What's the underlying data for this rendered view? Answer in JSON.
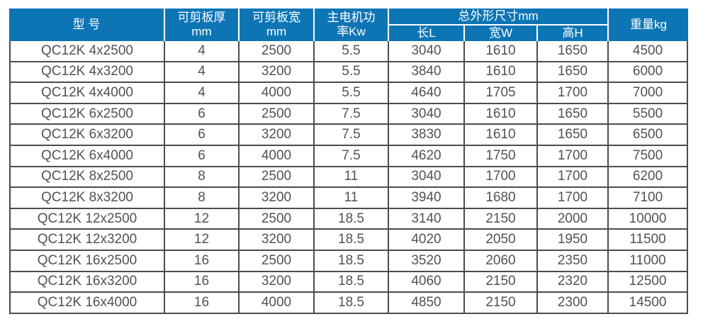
{
  "table": {
    "header": {
      "model": "型 号",
      "thickness_line1": "可剪板厚",
      "thickness_line2": "mm",
      "width_line1": "可剪板宽",
      "width_line2": "mm",
      "power_line1": "主电机功",
      "power_line2": "率Kw",
      "dimensions": "总外形尺寸mm",
      "length": "长L",
      "width_w": "宽W",
      "height_h": "高H",
      "weight": "重量kg"
    },
    "column_keys": [
      "model",
      "thickness",
      "width",
      "power",
      "length",
      "width-w",
      "height",
      "weight"
    ],
    "rows": [
      [
        "QC12K 4x2500",
        "4",
        "2500",
        "5.5",
        "3040",
        "1610",
        "1650",
        "4500"
      ],
      [
        "QC12K 4x3200",
        "4",
        "3200",
        "5.5",
        "3840",
        "1610",
        "1650",
        "6000"
      ],
      [
        "QC12K 4x4000",
        "4",
        "4000",
        "5.5",
        "4640",
        "1705",
        "1700",
        "7000"
      ],
      [
        "QC12K 6x2500",
        "6",
        "2500",
        "7.5",
        "3040",
        "1610",
        "1650",
        "5500"
      ],
      [
        "QC12K 6x3200",
        "6",
        "3200",
        "7.5",
        "3830",
        "1610",
        "1650",
        "6500"
      ],
      [
        "QC12K 6x4000",
        "6",
        "4000",
        "7.5",
        "4620",
        "1750",
        "1700",
        "7500"
      ],
      [
        "QC12K 8x2500",
        "8",
        "2500",
        "11",
        "3040",
        "1700",
        "1700",
        "6200"
      ],
      [
        "QC12K 8x3200",
        "8",
        "3200",
        "11",
        "3940",
        "1680",
        "1700",
        "7100"
      ],
      [
        "QC12K 12x2500",
        "12",
        "2500",
        "18.5",
        "3140",
        "2150",
        "2000",
        "10000"
      ],
      [
        "QC12K 12x3200",
        "12",
        "3200",
        "18.5",
        "4020",
        "2050",
        "1950",
        "11500"
      ],
      [
        "QC12K 16x2500",
        "16",
        "2500",
        "18.5",
        "3520",
        "2060",
        "2350",
        "11000"
      ],
      [
        "QC12K 16x3200",
        "16",
        "3200",
        "18.5",
        "4060",
        "2150",
        "2320",
        "12500"
      ],
      [
        "QC12K 16x4000",
        "16",
        "4000",
        "18.5",
        "4850",
        "2150",
        "2300",
        "14500"
      ]
    ],
    "colors": {
      "header_bg": "#0e75b5",
      "header_text": "#ffffff",
      "body_text": "#515254",
      "grid_line": "#4b4c4d"
    }
  }
}
